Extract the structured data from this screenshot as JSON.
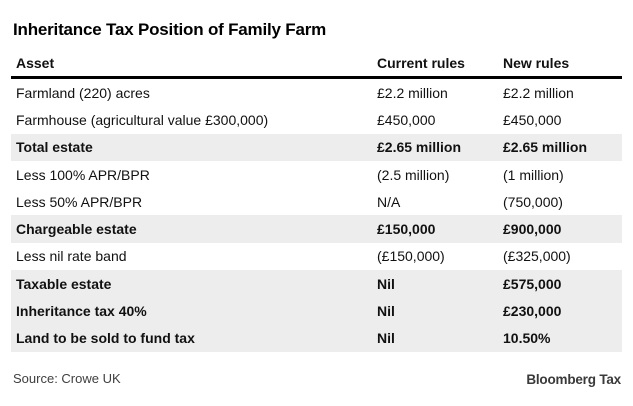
{
  "title": "Inheritance Tax Position of Family Farm",
  "chart_data": {
    "type": "table",
    "title": "Inheritance Tax Position of Family Farm",
    "columns": [
      "Asset",
      "Current rules",
      "New rules"
    ],
    "rows": [
      {
        "asset": "Farmland (220) acres",
        "current": "£2.2 million",
        "new": "£2.2 million",
        "emphasis": false
      },
      {
        "asset": "Farmhouse (agricultural value £300,000)",
        "current": "£450,000",
        "new": "£450,000",
        "emphasis": false
      },
      {
        "asset": "Total estate",
        "current": "£2.65 million",
        "new": "£2.65 million",
        "emphasis": true
      },
      {
        "asset": "Less 100% APR/BPR",
        "current": "(2.5 million)",
        "new": "(1 million)",
        "emphasis": false
      },
      {
        "asset": "Less 50% APR/BPR",
        "current": "N/A",
        "new": "(750,000)",
        "emphasis": false
      },
      {
        "asset": "Chargeable estate",
        "current": "£150,000",
        "new": "£900,000",
        "emphasis": true
      },
      {
        "asset": "Less nil rate band",
        "current": "(£150,000)",
        "new": "(£325,000)",
        "emphasis": false
      },
      {
        "asset": "Taxable estate",
        "current": "Nil",
        "new": "£575,000",
        "emphasis": true
      },
      {
        "asset": "Inheritance tax 40%",
        "current": "Nil",
        "new": "£230,000",
        "emphasis": true
      },
      {
        "asset": "Land to be sold to fund tax",
        "current": "Nil",
        "new": "10.50%",
        "emphasis": true
      }
    ]
  },
  "footer": {
    "source": "Source: Crowe UK",
    "brand": "Bloomberg Tax"
  },
  "colors": {
    "highlight_row": "#ededed",
    "header_rule": "#000000",
    "text": "#111111",
    "footer_text": "#3f3f3f"
  }
}
